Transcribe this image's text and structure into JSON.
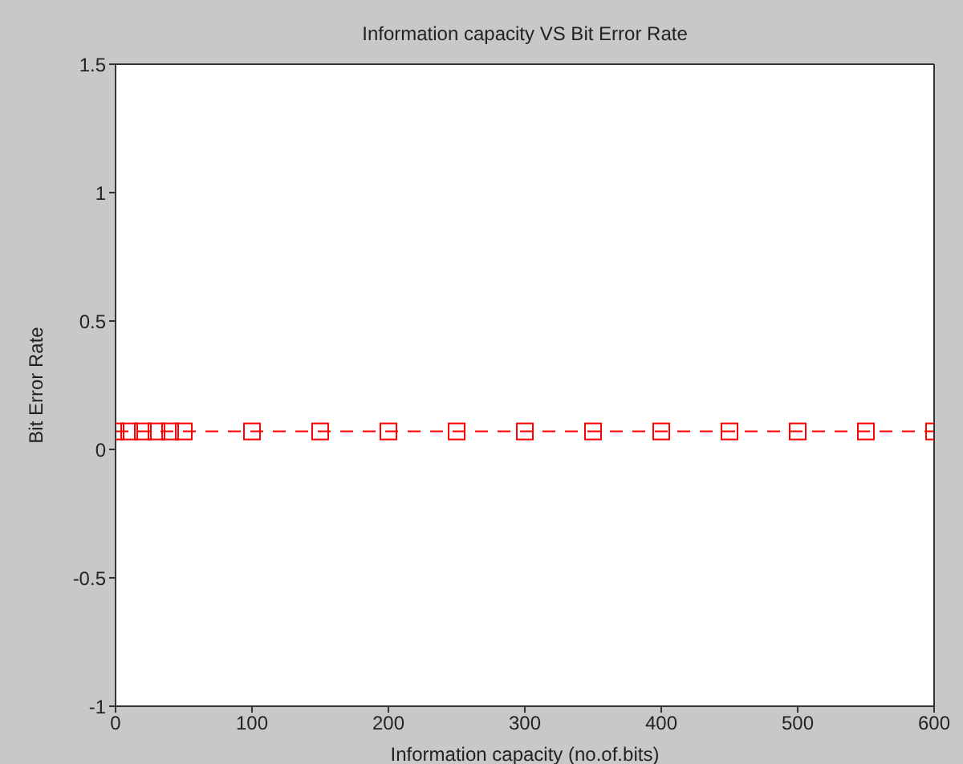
{
  "chart_data": {
    "type": "line",
    "title": "Information capacity VS Bit Error Rate",
    "xlabel": "Information capacity (no.of.bits)",
    "ylabel": "Bit Error Rate",
    "x": [
      0,
      10,
      20,
      30,
      40,
      50,
      100,
      150,
      200,
      250,
      300,
      350,
      400,
      450,
      500,
      550,
      600
    ],
    "series": [
      {
        "color": "#ff0000",
        "values": [
          0.07,
          0.07,
          0.07,
          0.07,
          0.07,
          0.07,
          0.07,
          0.07,
          0.07,
          0.07,
          0.07,
          0.07,
          0.07,
          0.07,
          0.07,
          0.07,
          0.07
        ]
      }
    ],
    "xlim": [
      0,
      600
    ],
    "xticks": [
      0,
      100,
      200,
      300,
      400,
      500,
      600
    ],
    "ylim": [
      -1,
      1.5
    ],
    "yticks": [
      -1,
      -0.5,
      0,
      0.5,
      1,
      1.5
    ],
    "marker": "square",
    "line_style": "dashed"
  }
}
